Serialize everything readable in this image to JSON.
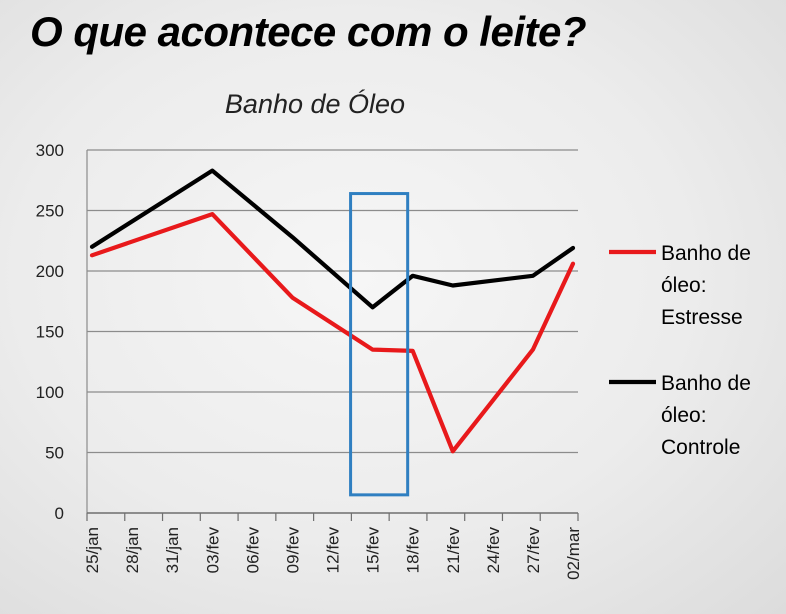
{
  "page": {
    "headline": "O que acontece com o leite?"
  },
  "chart_data": {
    "type": "line",
    "title": "Banho de Óleo",
    "xlabel": "",
    "ylabel": "",
    "ylim": [
      0,
      300
    ],
    "yticks": [
      0,
      50,
      100,
      150,
      200,
      250,
      300
    ],
    "grid": true,
    "legend_position": "right",
    "categories": [
      "25/jan",
      "28/jan",
      "31/jan",
      "03/fev",
      "06/fev",
      "09/fev",
      "12/fev",
      "15/fev",
      "18/fev",
      "21/fev",
      "24/fev",
      "27/fev",
      "02/mar"
    ],
    "series": [
      {
        "name": "Banho de óleo: Estresse",
        "legend_lines": [
          "Banho de",
          "óleo:",
          "Estresse"
        ],
        "color": "#e8191b",
        "points": [
          {
            "x": "25/jan",
            "y": 213
          },
          {
            "x": "03/fev",
            "y": 247
          },
          {
            "x": "09/fev",
            "y": 178
          },
          {
            "x": "15/fev",
            "y": 135
          },
          {
            "x": "18/fev",
            "y": 134
          },
          {
            "x": "21/fev",
            "y": 51
          },
          {
            "x": "27/fev",
            "y": 135
          },
          {
            "x": "02/mar",
            "y": 206
          }
        ]
      },
      {
        "name": "Banho de óleo: Controle",
        "legend_lines": [
          "Banho de",
          "óleo:",
          "Controle"
        ],
        "color": "#000000",
        "points": [
          {
            "x": "25/jan",
            "y": 220
          },
          {
            "x": "03/fev",
            "y": 283
          },
          {
            "x": "09/fev",
            "y": 228
          },
          {
            "x": "15/fev",
            "y": 170
          },
          {
            "x": "18/fev",
            "y": 196
          },
          {
            "x": "21/fev",
            "y": 188
          },
          {
            "x": "27/fev",
            "y": 196
          },
          {
            "x": "02/mar",
            "y": 219
          }
        ]
      }
    ],
    "highlight": {
      "color": "#2f7fc1",
      "x_from": "15/fev",
      "x_to": "18/fev",
      "y_from": 15,
      "y_to": 264
    }
  }
}
